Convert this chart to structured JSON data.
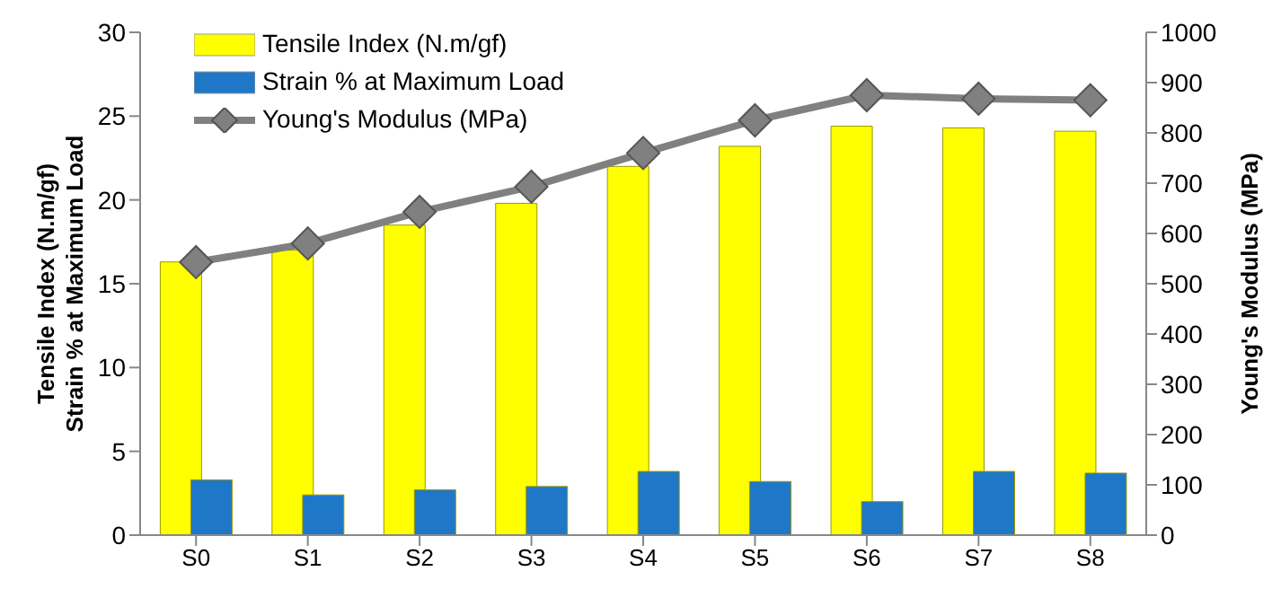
{
  "chart_data": {
    "type": "bar",
    "categories": [
      "S0",
      "S1",
      "S2",
      "S3",
      "S4",
      "S5",
      "S6",
      "S7",
      "S8"
    ],
    "series": [
      {
        "name": "Tensile Index (N.m/gf)",
        "color": "#ffff00",
        "values": [
          16.3,
          17.0,
          18.5,
          19.8,
          22.0,
          23.2,
          24.4,
          24.3,
          24.1
        ]
      },
      {
        "name": "Strain % at Maximum Load",
        "color": "#1f77c8",
        "values": [
          3.3,
          2.4,
          2.7,
          2.9,
          3.8,
          3.2,
          2.0,
          3.8,
          3.7
        ]
      },
      {
        "name": "Young's Modulus (MPa)",
        "type": "line",
        "axis": "y2",
        "color": "#808080",
        "marker": "diamond",
        "values": [
          543,
          580,
          643,
          693,
          760,
          825,
          875,
          868,
          865
        ]
      }
    ],
    "ylabel": "Tensile Index (N.m/gf)\nStrain % at Maximum Load",
    "y2label": "Young's Modulus (MPa)",
    "ylim": [
      0,
      30
    ],
    "yticks": [
      0,
      5,
      10,
      15,
      20,
      25,
      30
    ],
    "y2lim": [
      0,
      1000
    ],
    "y2ticks": [
      0,
      100,
      200,
      300,
      400,
      500,
      600,
      700,
      800,
      900,
      1000
    ],
    "grid": false,
    "legend": "top left"
  }
}
